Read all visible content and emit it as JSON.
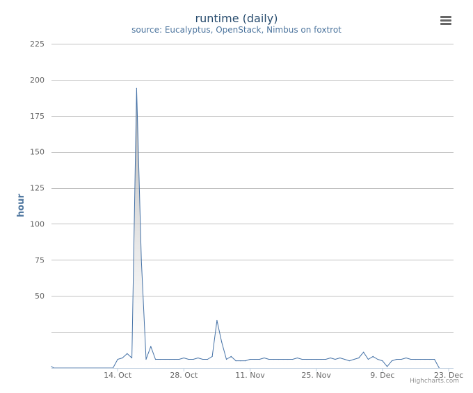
{
  "chart_data": {
    "type": "area",
    "title": "runtime (daily)",
    "subtitle": "source: Eucalyptus, OpenStack, Nimbus on foxtrot",
    "ylabel": "hour",
    "xlabel": "",
    "ylim": [
      0,
      225
    ],
    "yticks": [
      50,
      75,
      100,
      125,
      150,
      175,
      200,
      225
    ],
    "xticks": [
      {
        "day": 14,
        "label": "14. Oct"
      },
      {
        "day": 28,
        "label": "28. Oct"
      },
      {
        "day": 42,
        "label": "11. Nov"
      },
      {
        "day": 56,
        "label": "25. Nov"
      },
      {
        "day": 70,
        "label": "9. Dec"
      },
      {
        "day": 84,
        "label": "23. Dec"
      }
    ],
    "x_range_days": [
      0,
      84
    ],
    "grid": true,
    "legend": "none",
    "series": [
      {
        "color": "#4572A7",
        "points": [
          [
            0,
            1
          ],
          [
            0.5,
            0
          ],
          [
            13,
            0
          ],
          [
            14,
            6
          ],
          [
            15,
            7
          ],
          [
            16,
            10
          ],
          [
            17,
            7
          ],
          [
            18,
            194
          ],
          [
            19,
            75
          ],
          [
            20,
            6
          ],
          [
            21,
            15
          ],
          [
            22,
            6
          ],
          [
            23,
            6
          ],
          [
            24,
            6
          ],
          [
            25,
            6
          ],
          [
            26,
            6
          ],
          [
            27,
            6
          ],
          [
            28,
            7
          ],
          [
            29,
            6
          ],
          [
            30,
            6
          ],
          [
            31,
            7
          ],
          [
            32,
            6
          ],
          [
            33,
            6
          ],
          [
            34,
            8
          ],
          [
            35,
            33
          ],
          [
            36,
            18
          ],
          [
            37,
            6
          ],
          [
            38,
            8
          ],
          [
            39,
            5
          ],
          [
            40,
            5
          ],
          [
            41,
            5
          ],
          [
            42,
            6
          ],
          [
            43,
            6
          ],
          [
            44,
            6
          ],
          [
            45,
            7
          ],
          [
            46,
            6
          ],
          [
            47,
            6
          ],
          [
            48,
            6
          ],
          [
            49,
            6
          ],
          [
            50,
            6
          ],
          [
            51,
            6
          ],
          [
            52,
            7
          ],
          [
            53,
            6
          ],
          [
            54,
            6
          ],
          [
            55,
            6
          ],
          [
            56,
            6
          ],
          [
            57,
            6
          ],
          [
            58,
            6
          ],
          [
            59,
            7
          ],
          [
            60,
            6
          ],
          [
            61,
            7
          ],
          [
            62,
            6
          ],
          [
            63,
            5
          ],
          [
            64,
            6
          ],
          [
            65,
            7
          ],
          [
            66,
            11
          ],
          [
            67,
            6
          ],
          [
            68,
            8
          ],
          [
            69,
            6
          ],
          [
            70,
            5
          ],
          [
            71,
            1
          ],
          [
            72,
            5
          ],
          [
            73,
            6
          ],
          [
            74,
            6
          ],
          [
            75,
            7
          ],
          [
            76,
            6
          ],
          [
            77,
            6
          ],
          [
            78,
            6
          ],
          [
            79,
            6
          ],
          [
            80,
            6
          ],
          [
            81,
            6
          ],
          [
            82,
            0
          ]
        ]
      }
    ]
  },
  "credits": "Highcharts.com",
  "colors": {
    "line": "#4572A7",
    "grid": "#C0C0C0",
    "axis_label": "#4d759e",
    "title": "#274b6d"
  },
  "icons": {
    "menu": "hamburger-menu-icon"
  }
}
